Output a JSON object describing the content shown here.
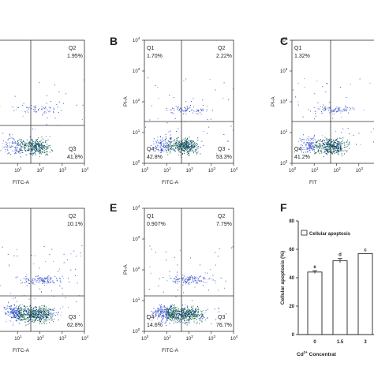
{
  "figure": {
    "panels": [
      {
        "letter": "",
        "ylabel": "",
        "xlabel": "FITC-A",
        "q1": "",
        "q2": "Q2",
        "q2v": "1.95%",
        "q3": "Q3",
        "q3v": "41.8%",
        "q4": "",
        "q4v": "",
        "q1v": "",
        "seed": 11,
        "density": "low",
        "show_y_ticks": false
      },
      {
        "letter": "B",
        "ylabel": "PI-A",
        "xlabel": "FITC-A",
        "q1": "Q1",
        "q1v": "1.70%",
        "q2": "Q2",
        "q2v": "2.22%",
        "q3": "Q3",
        "q3v": "53.3%",
        "q4": "Q4",
        "q4v": "42.8%",
        "seed": 23,
        "density": "mid",
        "show_y_ticks": true
      },
      {
        "letter": "C",
        "ylabel": "PI-A",
        "xlabel": "FIT",
        "q1": "Q1",
        "q1v": "1.32%",
        "q2": "",
        "q2v": "",
        "q3": "",
        "q3v": "",
        "q4": "Q4",
        "q4v": "41.2%",
        "seed": 37,
        "density": "mid",
        "show_y_ticks": true
      },
      {
        "letter": "",
        "ylabel": "",
        "xlabel": "FITC-A",
        "q1": "",
        "q1v": "",
        "q2": "Q2",
        "q2v": "10.1%",
        "q3": "Q3",
        "q3v": "62.8%",
        "q4": "",
        "q4v": "",
        "seed": 41,
        "density": "high",
        "show_y_ticks": false
      },
      {
        "letter": "E",
        "ylabel": "PI-A",
        "xlabel": "FITC-A",
        "q1": "Q1",
        "q1v": "0.907%",
        "q2": "Q2",
        "q2v": "7.79%",
        "q3": "Q3",
        "q3v": "76.7%",
        "q4": "Q4",
        "q4v": "14.6%",
        "seed": 53,
        "density": "high",
        "show_y_ticks": true
      }
    ],
    "tick_labels": {
      "log10": [
        "10",
        "0"
      ],
      "x_exps": [
        "0",
        "1",
        "2",
        "3",
        "4"
      ],
      "y_exps": [
        "0",
        "1",
        "2",
        "3",
        "4"
      ]
    }
  },
  "chart_data": [
    {
      "type": "scatter",
      "title": "",
      "xlabel": "FITC-A",
      "ylabel": "PI-A",
      "xscale": "log",
      "yscale": "log",
      "xlim": [
        1,
        10000
      ],
      "ylim": [
        1,
        10000
      ],
      "quadrants": {
        "Q1": "1.70%",
        "Q2": "2.22%",
        "Q3": "53.3%",
        "Q4": "42.8%"
      }
    },
    {
      "type": "bar",
      "title": "",
      "categories": [
        "0",
        "1.5",
        "3"
      ],
      "values": [
        44,
        52,
        57
      ],
      "errors": [
        1.0,
        1.5,
        0
      ],
      "labels": [
        "e",
        "d",
        "c"
      ],
      "xlabel": "Cd",
      "xlabel_sup": "2+",
      "xlabel_suffix": " Concentrat",
      "ylabel": "Cellular apoptosis (%)",
      "legend": "Cellular apoptosis",
      "ylim": [
        0,
        80
      ],
      "yticks": [
        "0",
        "20",
        "40",
        "60",
        "80"
      ],
      "letter": "F"
    }
  ]
}
